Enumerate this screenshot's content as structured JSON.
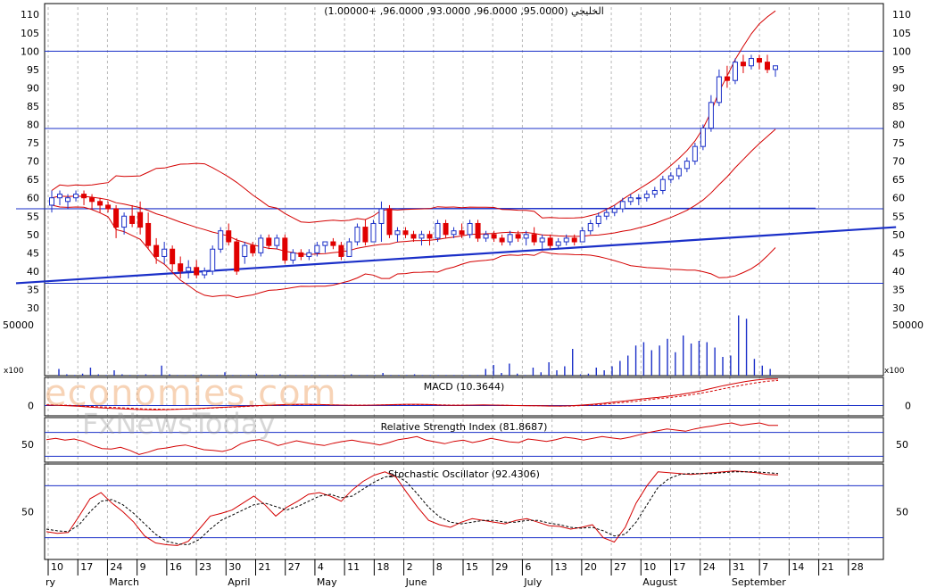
{
  "watermark": {
    "brand": "economies.com",
    "sub": "FxNewsToday"
  },
  "chart_data": [
    {
      "type": "candlestick",
      "title": "الخليجي (95.0000, 96.0000, 93.0000, 96.0000, +1.00000)",
      "ylim": [
        30,
        112
      ],
      "yticks": [
        30,
        35,
        40,
        45,
        50,
        55,
        60,
        65,
        70,
        75,
        80,
        85,
        90,
        95,
        100,
        105,
        110
      ],
      "trend_lines": [
        {
          "from": [
            0,
            36.7
          ],
          "to": [
            105,
            52
          ]
        },
        {
          "from": [
            0,
            57
          ],
          "to": [
            95,
            57.2
          ]
        }
      ],
      "horizontal_lines": [
        100,
        78.9,
        57,
        36.7
      ],
      "candles": [
        {
          "o": 58,
          "h": 62,
          "l": 56,
          "c": 60
        },
        {
          "o": 60,
          "h": 62,
          "l": 58,
          "c": 61
        },
        {
          "o": 59,
          "h": 61,
          "l": 57,
          "c": 60
        },
        {
          "o": 60,
          "h": 62,
          "l": 59,
          "c": 61
        },
        {
          "o": 61,
          "h": 62,
          "l": 58,
          "c": 60
        },
        {
          "o": 60,
          "h": 61,
          "l": 57,
          "c": 59
        },
        {
          "o": 59,
          "h": 60,
          "l": 56,
          "c": 58
        },
        {
          "o": 58,
          "h": 59,
          "l": 56,
          "c": 57
        },
        {
          "o": 57,
          "h": 58,
          "l": 49,
          "c": 52
        },
        {
          "o": 52,
          "h": 56,
          "l": 50,
          "c": 55
        },
        {
          "o": 55,
          "h": 58,
          "l": 52,
          "c": 53
        },
        {
          "o": 56,
          "h": 59,
          "l": 50,
          "c": 52
        },
        {
          "o": 53,
          "h": 56,
          "l": 46,
          "c": 47
        },
        {
          "o": 47,
          "h": 49,
          "l": 42,
          "c": 44
        },
        {
          "o": 44,
          "h": 48,
          "l": 42,
          "c": 46
        },
        {
          "o": 46,
          "h": 47,
          "l": 40,
          "c": 42
        },
        {
          "o": 42,
          "h": 44,
          "l": 38,
          "c": 40
        },
        {
          "o": 40,
          "h": 43,
          "l": 38,
          "c": 41
        },
        {
          "o": 41,
          "h": 43,
          "l": 38,
          "c": 39
        },
        {
          "o": 39,
          "h": 41,
          "l": 38,
          "c": 40
        },
        {
          "o": 40,
          "h": 47,
          "l": 39,
          "c": 46
        },
        {
          "o": 46,
          "h": 52,
          "l": 45,
          "c": 51
        },
        {
          "o": 51,
          "h": 53,
          "l": 47,
          "c": 48
        },
        {
          "o": 48,
          "h": 49,
          "l": 39,
          "c": 40
        },
        {
          "o": 44,
          "h": 48,
          "l": 42,
          "c": 47
        },
        {
          "o": 47,
          "h": 48,
          "l": 44,
          "c": 45
        },
        {
          "o": 45,
          "h": 50,
          "l": 44,
          "c": 49
        },
        {
          "o": 49,
          "h": 50,
          "l": 46,
          "c": 47
        },
        {
          "o": 47,
          "h": 50,
          "l": 46,
          "c": 49
        },
        {
          "o": 49,
          "h": 50,
          "l": 42,
          "c": 43
        },
        {
          "o": 43,
          "h": 46,
          "l": 42,
          "c": 45
        },
        {
          "o": 45,
          "h": 46,
          "l": 43,
          "c": 44
        },
        {
          "o": 44,
          "h": 46,
          "l": 43,
          "c": 45
        },
        {
          "o": 45,
          "h": 48,
          "l": 44,
          "c": 47
        },
        {
          "o": 47,
          "h": 48,
          "l": 45,
          "c": 48
        },
        {
          "o": 48,
          "h": 49,
          "l": 46,
          "c": 47
        },
        {
          "o": 47,
          "h": 48,
          "l": 43,
          "c": 44
        },
        {
          "o": 44,
          "h": 49,
          "l": 44,
          "c": 48
        },
        {
          "o": 48,
          "h": 53,
          "l": 47,
          "c": 52
        },
        {
          "o": 52,
          "h": 54,
          "l": 47,
          "c": 48
        },
        {
          "o": 48,
          "h": 54,
          "l": 48,
          "c": 53
        },
        {
          "o": 53,
          "h": 59,
          "l": 48,
          "c": 57
        },
        {
          "o": 57,
          "h": 58,
          "l": 49,
          "c": 50
        },
        {
          "o": 50,
          "h": 52,
          "l": 48,
          "c": 51
        },
        {
          "o": 51,
          "h": 52,
          "l": 49,
          "c": 50
        },
        {
          "o": 50,
          "h": 51,
          "l": 48,
          "c": 49
        },
        {
          "o": 49,
          "h": 51,
          "l": 47,
          "c": 50
        },
        {
          "o": 50,
          "h": 51,
          "l": 47,
          "c": 49
        },
        {
          "o": 49,
          "h": 54,
          "l": 48,
          "c": 53
        },
        {
          "o": 53,
          "h": 54,
          "l": 49,
          "c": 50
        },
        {
          "o": 50,
          "h": 52,
          "l": 49,
          "c": 51
        },
        {
          "o": 51,
          "h": 53,
          "l": 49,
          "c": 50
        },
        {
          "o": 50,
          "h": 54,
          "l": 49,
          "c": 53
        },
        {
          "o": 53,
          "h": 54,
          "l": 48,
          "c": 49
        },
        {
          "o": 49,
          "h": 51,
          "l": 48,
          "c": 50
        },
        {
          "o": 50,
          "h": 51,
          "l": 48,
          "c": 49
        },
        {
          "o": 49,
          "h": 50,
          "l": 47,
          "c": 48
        },
        {
          "o": 48,
          "h": 51,
          "l": 47,
          "c": 50
        },
        {
          "o": 50,
          "h": 51,
          "l": 48,
          "c": 49
        },
        {
          "o": 49,
          "h": 51,
          "l": 47,
          "c": 50
        },
        {
          "o": 50,
          "h": 52,
          "l": 47,
          "c": 48
        },
        {
          "o": 48,
          "h": 50,
          "l": 46,
          "c": 49
        },
        {
          "o": 49,
          "h": 50,
          "l": 46,
          "c": 47
        },
        {
          "o": 47,
          "h": 49,
          "l": 46,
          "c": 48
        },
        {
          "o": 48,
          "h": 50,
          "l": 47,
          "c": 49
        },
        {
          "o": 49,
          "h": 50,
          "l": 47,
          "c": 48
        },
        {
          "o": 48,
          "h": 52,
          "l": 48,
          "c": 51
        },
        {
          "o": 51,
          "h": 54,
          "l": 50,
          "c": 53
        },
        {
          "o": 53,
          "h": 56,
          "l": 52,
          "c": 55
        },
        {
          "o": 55,
          "h": 57,
          "l": 54,
          "c": 56
        },
        {
          "o": 56,
          "h": 58,
          "l": 55,
          "c": 57
        },
        {
          "o": 57,
          "h": 60,
          "l": 56,
          "c": 59
        },
        {
          "o": 59,
          "h": 61,
          "l": 58,
          "c": 60
        },
        {
          "o": 60,
          "h": 61,
          "l": 58,
          "c": 60
        },
        {
          "o": 60,
          "h": 62,
          "l": 59,
          "c": 61
        },
        {
          "o": 61,
          "h": 63,
          "l": 60,
          "c": 62
        },
        {
          "o": 62,
          "h": 66,
          "l": 61,
          "c": 65
        },
        {
          "o": 65,
          "h": 67,
          "l": 64,
          "c": 66
        },
        {
          "o": 66,
          "h": 69,
          "l": 65,
          "c": 68
        },
        {
          "o": 68,
          "h": 71,
          "l": 67,
          "c": 70
        },
        {
          "o": 70,
          "h": 75,
          "l": 69,
          "c": 74
        },
        {
          "o": 74,
          "h": 80,
          "l": 73,
          "c": 79
        },
        {
          "o": 79,
          "h": 88,
          "l": 78,
          "c": 86
        },
        {
          "o": 86,
          "h": 95,
          "l": 85,
          "c": 93
        },
        {
          "o": 93,
          "h": 96,
          "l": 90,
          "c": 92
        },
        {
          "o": 92,
          "h": 98,
          "l": 91,
          "c": 97
        },
        {
          "o": 97,
          "h": 99,
          "l": 94,
          "c": 96
        },
        {
          "o": 96,
          "h": 99,
          "l": 95,
          "c": 98
        },
        {
          "o": 98,
          "h": 99,
          "l": 95,
          "c": 97
        },
        {
          "o": 97,
          "h": 99,
          "l": 94,
          "c": 95
        },
        {
          "o": 95,
          "h": 96,
          "l": 93,
          "c": 96
        }
      ],
      "volume_label": "50000",
      "volume_scale_label": "x100",
      "volume": [
        10,
        2,
        1,
        3,
        12,
        2,
        1,
        8,
        2,
        1,
        1,
        2,
        1,
        15,
        2,
        1,
        1,
        1,
        2,
        1,
        1,
        5,
        1,
        1,
        1,
        3,
        1,
        1,
        2,
        1,
        1,
        1,
        1,
        1,
        1,
        1,
        1,
        2,
        1,
        1,
        1,
        4,
        1,
        1,
        1,
        2,
        1,
        1,
        1,
        1,
        1,
        1,
        1,
        1,
        10,
        16,
        4,
        18,
        3,
        1,
        12,
        5,
        20,
        8,
        14,
        40,
        2,
        3,
        12,
        8,
        14,
        22,
        30,
        45,
        50,
        38,
        45,
        55,
        35,
        60,
        48,
        52,
        50,
        42,
        28,
        30,
        90,
        85,
        25,
        15,
        10
      ]
    },
    {
      "type": "line",
      "title": "MACD (10.3644)",
      "ylim": [
        -4,
        11
      ],
      "yticks": [
        0
      ],
      "series": [
        {
          "values": [
            0.2,
            0.1,
            -0.1,
            -0.3,
            -0.6,
            -0.9,
            -1.1,
            -1.3,
            -1.5,
            -1.6,
            -1.7,
            -1.6,
            -1.5,
            -1.3,
            -1.1,
            -0.9,
            -0.7,
            -0.5,
            -0.3,
            -0.1,
            0.1,
            0.3,
            0.4,
            0.5,
            0.5,
            0.4,
            0.3,
            0.2,
            0.1,
            0.1,
            0.2,
            0.3,
            0.4,
            0.5,
            0.5,
            0.4,
            0.2,
            0.1,
            0.1,
            0.2,
            0.3,
            0.2,
            0.1,
            0.0,
            -0.1,
            -0.1,
            -0.2,
            -0.2,
            -0.1,
            0.2,
            0.5,
            0.9,
            1.4,
            1.8,
            2.3,
            2.8,
            3.2,
            3.7,
            4.3,
            5.0,
            5.8,
            6.8,
            7.8,
            8.6,
            9.4,
            10.0,
            10.4,
            10.3644
          ]
        },
        {
          "values": [
            0.3,
            0.2,
            0.1,
            -0.1,
            -0.3,
            -0.5,
            -0.7,
            -0.9,
            -1.1,
            -1.3,
            -1.4,
            -1.5,
            -1.4,
            -1.3,
            -1.2,
            -1.0,
            -0.8,
            -0.6,
            -0.4,
            -0.2,
            0.0,
            0.1,
            0.3,
            0.4,
            0.4,
            0.4,
            0.3,
            0.2,
            0.2,
            0.2,
            0.2,
            0.3,
            0.3,
            0.4,
            0.4,
            0.4,
            0.3,
            0.2,
            0.2,
            0.2,
            0.2,
            0.2,
            0.1,
            0.0,
            0.0,
            -0.1,
            -0.1,
            -0.2,
            -0.2,
            0.0,
            0.2,
            0.5,
            0.9,
            1.3,
            1.7,
            2.2,
            2.7,
            3.1,
            3.6,
            4.2,
            4.9,
            5.7,
            6.6,
            7.4,
            8.2,
            8.9,
            9.5,
            9.8
          ]
        }
      ]
    },
    {
      "type": "line",
      "title": "Relative Strength Index (81.8687)",
      "ylim": [
        20,
        95
      ],
      "yticks": [
        50
      ],
      "horizontal_lines": [
        70,
        30
      ],
      "series": [
        {
          "values": [
            58,
            60,
            57,
            59,
            55,
            48,
            43,
            42,
            45,
            40,
            33,
            37,
            42,
            44,
            47,
            49,
            45,
            41,
            40,
            38,
            42,
            51,
            56,
            58,
            54,
            48,
            52,
            56,
            53,
            50,
            48,
            52,
            55,
            57,
            54,
            52,
            49,
            53,
            58,
            60,
            63,
            57,
            54,
            51,
            55,
            57,
            53,
            56,
            60,
            57,
            54,
            53,
            59,
            57,
            55,
            58,
            62,
            60,
            57,
            60,
            63,
            61,
            59,
            62,
            66,
            70,
            73,
            76,
            74,
            72,
            76,
            79,
            81,
            84,
            86,
            82,
            84,
            86,
            82,
            81.8687
          ]
        }
      ]
    },
    {
      "type": "line",
      "title": "Stochastic Oscillator (92.4306)",
      "ylim": [
        -5,
        105
      ],
      "yticks": [
        50
      ],
      "horizontal_lines": [
        80,
        20
      ],
      "series": [
        {
          "values": [
            27,
            25,
            26,
            45,
            65,
            72,
            60,
            50,
            38,
            22,
            14,
            12,
            11,
            16,
            30,
            45,
            48,
            52,
            60,
            68,
            58,
            45,
            55,
            62,
            70,
            72,
            68,
            62,
            75,
            85,
            92,
            96,
            90,
            72,
            55,
            40,
            35,
            32,
            38,
            42,
            40,
            38,
            36,
            40,
            42,
            38,
            34,
            33,
            30,
            32,
            35,
            20,
            15,
            32,
            60,
            80,
            96,
            95,
            94,
            93,
            94,
            95,
            96,
            97,
            96,
            95,
            93,
            92.4306
          ]
        },
        {
          "values": [
            30,
            28,
            27,
            35,
            50,
            62,
            64,
            58,
            48,
            36,
            24,
            16,
            13,
            12,
            18,
            30,
            40,
            46,
            52,
            58,
            60,
            56,
            52,
            56,
            62,
            68,
            70,
            66,
            68,
            76,
            84,
            90,
            92,
            84,
            70,
            55,
            44,
            38,
            36,
            38,
            40,
            40,
            38,
            38,
            40,
            40,
            37,
            35,
            32,
            31,
            32,
            28,
            22,
            24,
            38,
            58,
            78,
            88,
            93,
            94,
            94,
            94,
            95,
            96,
            96,
            96,
            95,
            94
          ]
        }
      ]
    },
    {
      "type": "x-axis",
      "day_ticks": [
        "10",
        "17",
        "24",
        "9",
        "16",
        "23",
        "30",
        "21",
        "27",
        "4",
        "11",
        "18",
        "2",
        "8",
        "15",
        "29",
        "6",
        "13",
        "20",
        "27",
        "10",
        "17",
        "24",
        "31",
        "7",
        "14",
        "21",
        "28"
      ],
      "month_labels": [
        "ry",
        "March",
        "April",
        "May",
        "June",
        "July",
        "August",
        "September"
      ]
    }
  ]
}
